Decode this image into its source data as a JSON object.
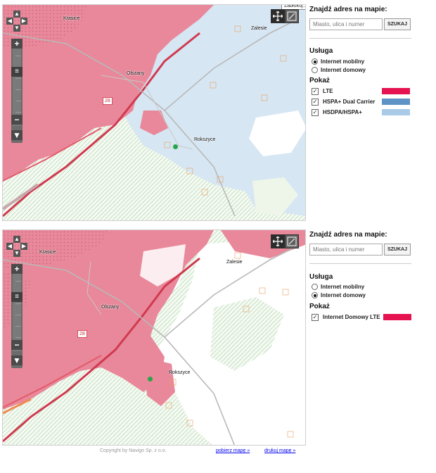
{
  "colors": {
    "coverage_pink": "#e8889a",
    "coverage_pink_light": "#f3b8c2",
    "water_blue": "#d6e6f3",
    "lte": "#e5134f",
    "hspa_dc": "#5f93c6",
    "hsdpa": "#a9cbe8",
    "internet_domowy_lte": "#e5134f"
  },
  "map1": {
    "tooltip": "Zabłokuj...",
    "places": {
      "krasice": "Krasice",
      "olszany": "Olszany",
      "rokszyce": "Rokszyce",
      "zalesie": "Zalesie"
    },
    "road_number": "28",
    "tool_move": "move-tool-icon",
    "tool_measure": "measure-tool-icon"
  },
  "map2": {
    "places": {
      "krasice": "Krasice",
      "olszany": "Olszany",
      "rokszyce": "Rokszyce",
      "zalesie": "Zalesie"
    },
    "road_number": "28"
  },
  "panel1": {
    "search_title": "Znajdź adres na mapie:",
    "search_placeholder": "Miasto, ulica i numer",
    "search_button": "SZUKAJ",
    "service_title": "Usługa",
    "service_options": [
      {
        "label": "Internet mobilny",
        "selected": true
      },
      {
        "label": "Internet domowy",
        "selected": false
      }
    ],
    "show_title": "Pokaż",
    "show_items": [
      {
        "label": "LTE",
        "checked": true,
        "color": "#e5134f"
      },
      {
        "label": "HSPA+ Dual Carrier",
        "checked": true,
        "color": "#5f93c6"
      },
      {
        "label": "HSDPA/HSPA+",
        "checked": true,
        "color": "#a9cbe8"
      }
    ]
  },
  "panel2": {
    "search_title": "Znajdź adres na mapie:",
    "search_placeholder": "Miasto, ulica i numer",
    "search_button": "SZUKAJ",
    "service_title": "Usługa",
    "service_options": [
      {
        "label": "Internet mobilny",
        "selected": false
      },
      {
        "label": "Internet domowy",
        "selected": true
      }
    ],
    "show_title": "Pokaż",
    "show_items": [
      {
        "label": "Internet Domowy LTE",
        "checked": true,
        "color": "#e5134f"
      }
    ]
  },
  "footer": {
    "copyright": "Copyright by Navigo Sp. z o.o.",
    "download_link": "pobierz mapę »",
    "print_link": "drukuj mapę »"
  }
}
